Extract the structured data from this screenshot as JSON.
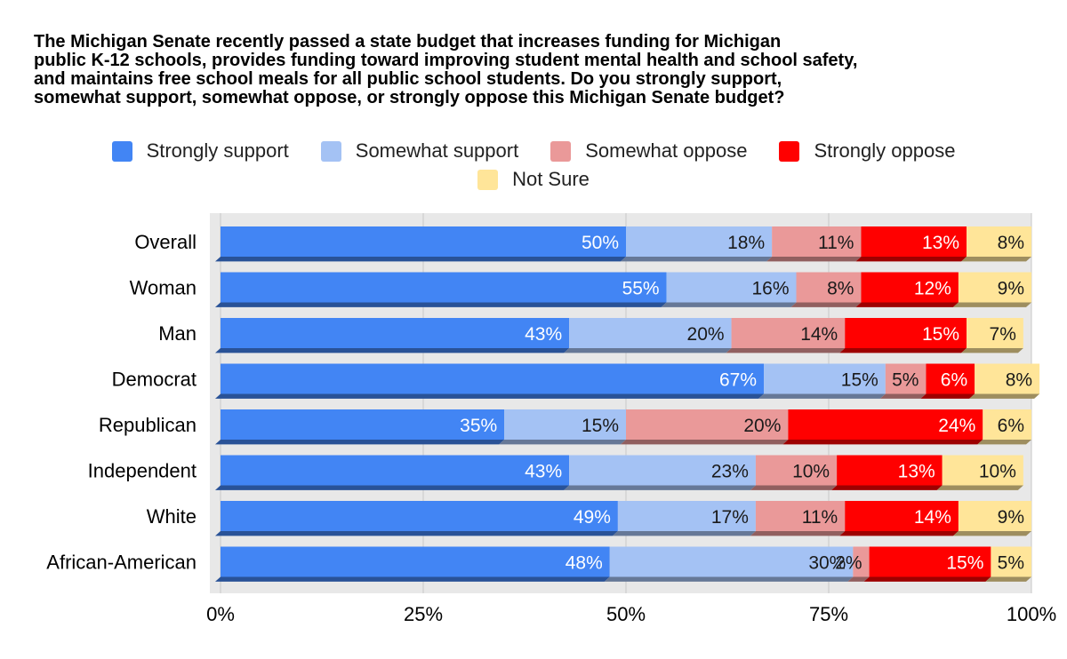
{
  "chart_data": {
    "type": "bar",
    "orientation": "horizontal",
    "stacked": true,
    "title": "The Michigan Senate recently passed a state budget that increases funding for Michigan\npublic K-12 schools, provides funding toward improving student mental health and school safety,\nand maintains free school meals for all public school students. Do you strongly support,\nsomewhat support, somewhat oppose, or strongly oppose this Michigan Senate budget?",
    "categories": [
      "Overall",
      "Woman",
      "Man",
      "Democrat",
      "Republican",
      "Independent",
      "White",
      "African-American"
    ],
    "series": [
      {
        "name": "Strongly support",
        "color": "#4285f4",
        "label_color": "#ffffff",
        "values": [
          50,
          55,
          43,
          67,
          35,
          43,
          49,
          48
        ]
      },
      {
        "name": "Somewhat support",
        "color": "#a4c2f4",
        "label_color": "#1a1a1a",
        "values": [
          18,
          16,
          20,
          15,
          15,
          23,
          17,
          30
        ]
      },
      {
        "name": "Somewhat oppose",
        "color": "#ea9999",
        "label_color": "#1a1a1a",
        "values": [
          11,
          8,
          14,
          5,
          20,
          10,
          11,
          2
        ]
      },
      {
        "name": "Strongly oppose",
        "color": "#ff0000",
        "label_color": "#ffffff",
        "values": [
          13,
          12,
          15,
          6,
          24,
          13,
          14,
          15
        ]
      },
      {
        "name": "Not Sure",
        "color": "#ffe599",
        "label_color": "#1a1a1a",
        "values": [
          8,
          9,
          7,
          8,
          6,
          10,
          9,
          5
        ]
      }
    ],
    "xlim": [
      0,
      100
    ],
    "x_ticks": [
      "0%",
      "25%",
      "50%",
      "75%",
      "100%"
    ],
    "xlabel": "",
    "ylabel": "",
    "legend_position": "top",
    "grid": true
  }
}
